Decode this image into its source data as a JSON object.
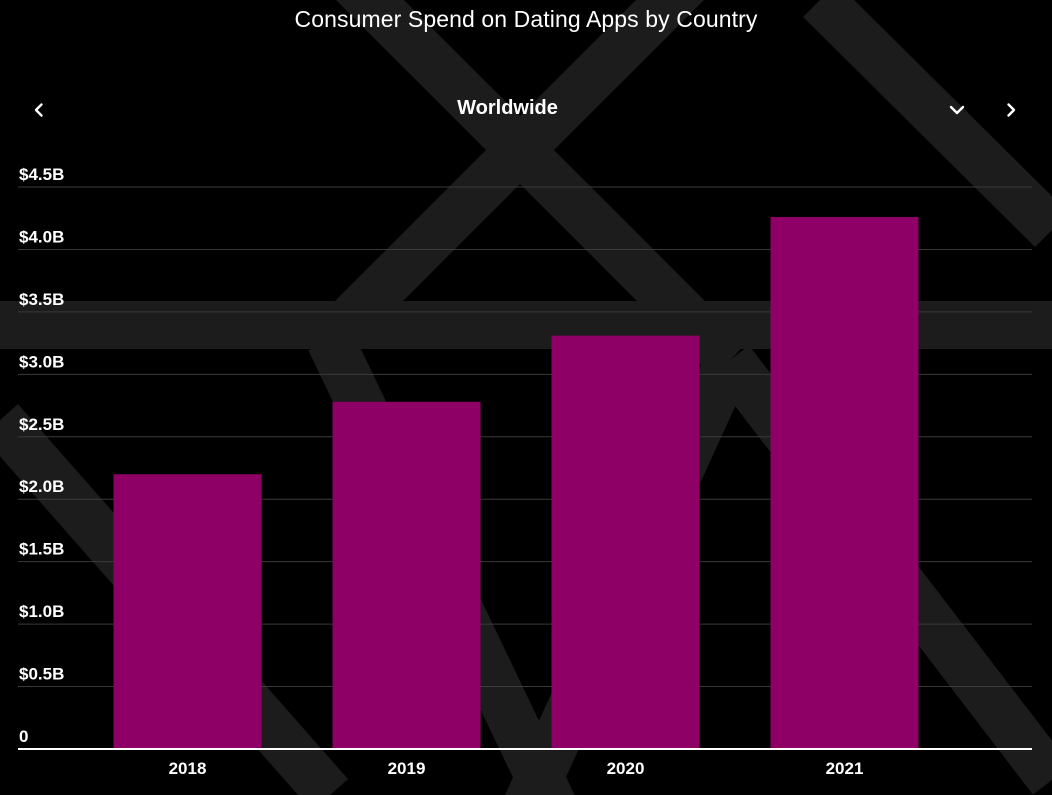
{
  "title": "Consumer Spend on Dating Apps by Country",
  "navigation": {
    "region": "Worldwide",
    "prev_icon": "chevron-left-icon",
    "dropdown_icon": "chevron-down-icon",
    "next_icon": "chevron-right-icon"
  },
  "colors": {
    "background": "#000000",
    "bar": "#8e0065",
    "grid": "#3a3a3a",
    "axis": "#ffffff",
    "pattern": "#1c1c1c"
  },
  "chart_data": {
    "type": "bar",
    "categories": [
      "2018",
      "2019",
      "2020",
      "2021"
    ],
    "values": [
      2.2,
      2.78,
      3.31,
      4.26
    ],
    "unit": "billion USD",
    "ylim": [
      0,
      4.5
    ],
    "yticks": [
      0,
      0.5,
      1.0,
      1.5,
      2.0,
      2.5,
      3.0,
      3.5,
      4.0,
      4.5
    ],
    "ytick_labels": [
      "0",
      "$0.5B",
      "$1.0B",
      "$1.5B",
      "$2.0B",
      "$2.5B",
      "$3.0B",
      "$3.5B",
      "$4.0B",
      "$4.5B"
    ],
    "grid": true,
    "legend": "none"
  }
}
